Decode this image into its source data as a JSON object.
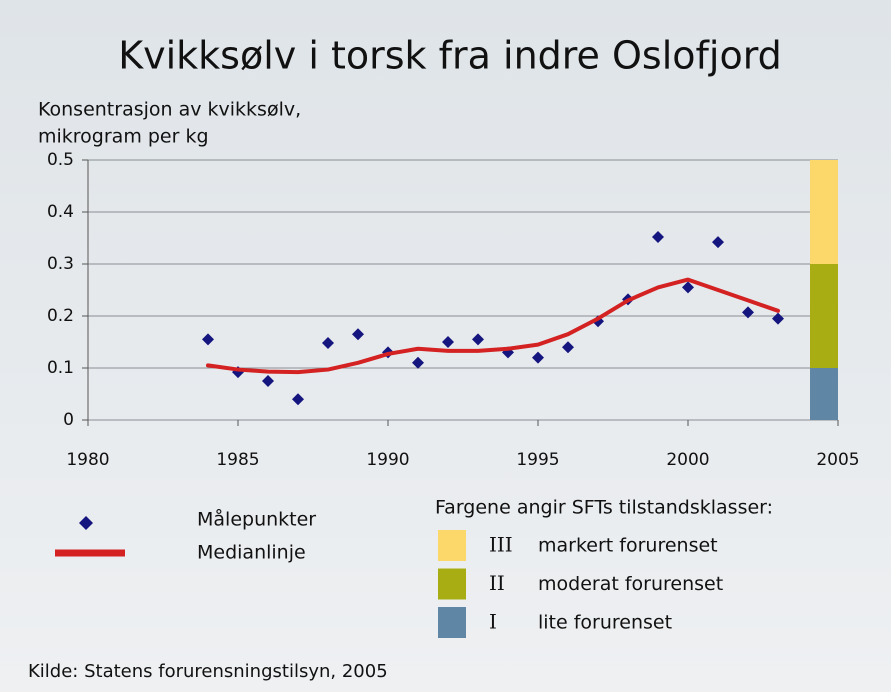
{
  "chart_data": {
    "type": "scatter",
    "title": "Kvikksølv i torsk fra indre Oslofjord",
    "y_label": [
      "Konsentrasjon av kvikksølv,",
      "mikrogram per kg"
    ],
    "xlim": [
      1980,
      2005
    ],
    "xticks": [
      1980,
      1985,
      1990,
      1995,
      2000,
      2005
    ],
    "ylim": [
      0,
      0.5
    ],
    "yticks": [
      0,
      0.1,
      0.2,
      0.3,
      0.4,
      0.5
    ],
    "grid": true,
    "series": [
      {
        "name": "Målepunkter",
        "type": "scatter",
        "color": "#15157f",
        "x": [
          1984,
          1985,
          1986,
          1987,
          1988,
          1989,
          1990,
          1991,
          1992,
          1993,
          1994,
          1995,
          1996,
          1997,
          1998,
          1999,
          2000,
          2001,
          2002,
          2003
        ],
        "values": [
          0.155,
          0.092,
          0.075,
          0.04,
          0.148,
          0.165,
          0.13,
          0.11,
          0.15,
          0.155,
          0.13,
          0.12,
          0.14,
          0.19,
          0.232,
          0.352,
          0.255,
          0.342,
          0.207,
          0.195
        ]
      },
      {
        "name": "Medianlinje",
        "type": "line",
        "color": "#d42222",
        "x": [
          1984,
          1985,
          1986,
          1987,
          1988,
          1989,
          1990,
          1991,
          1992,
          1993,
          1994,
          1995,
          1996,
          1997,
          1998,
          1999,
          2000,
          2001,
          2002,
          2003
        ],
        "values": [
          0.105,
          0.097,
          0.093,
          0.092,
          0.097,
          0.11,
          0.127,
          0.137,
          0.133,
          0.133,
          0.137,
          0.145,
          0.165,
          0.195,
          0.23,
          0.255,
          0.27,
          0.25,
          0.23,
          0.21
        ]
      }
    ],
    "classes": {
      "title": "Fargene angir SFTs tilstandsklasser:",
      "items": [
        {
          "numeral": "III",
          "label": "markert forurenset",
          "color": "#fcd86a",
          "range": [
            0.3,
            0.5
          ]
        },
        {
          "numeral": "II",
          "label": "moderat forurenset",
          "color": "#a9ad14",
          "range": [
            0.1,
            0.3
          ]
        },
        {
          "numeral": "I",
          "label": "lite forurenset",
          "color": "#5f86a5",
          "range": [
            0,
            0.1
          ]
        }
      ]
    },
    "source": "Kilde: Statens forurensningstilsyn, 2005"
  }
}
